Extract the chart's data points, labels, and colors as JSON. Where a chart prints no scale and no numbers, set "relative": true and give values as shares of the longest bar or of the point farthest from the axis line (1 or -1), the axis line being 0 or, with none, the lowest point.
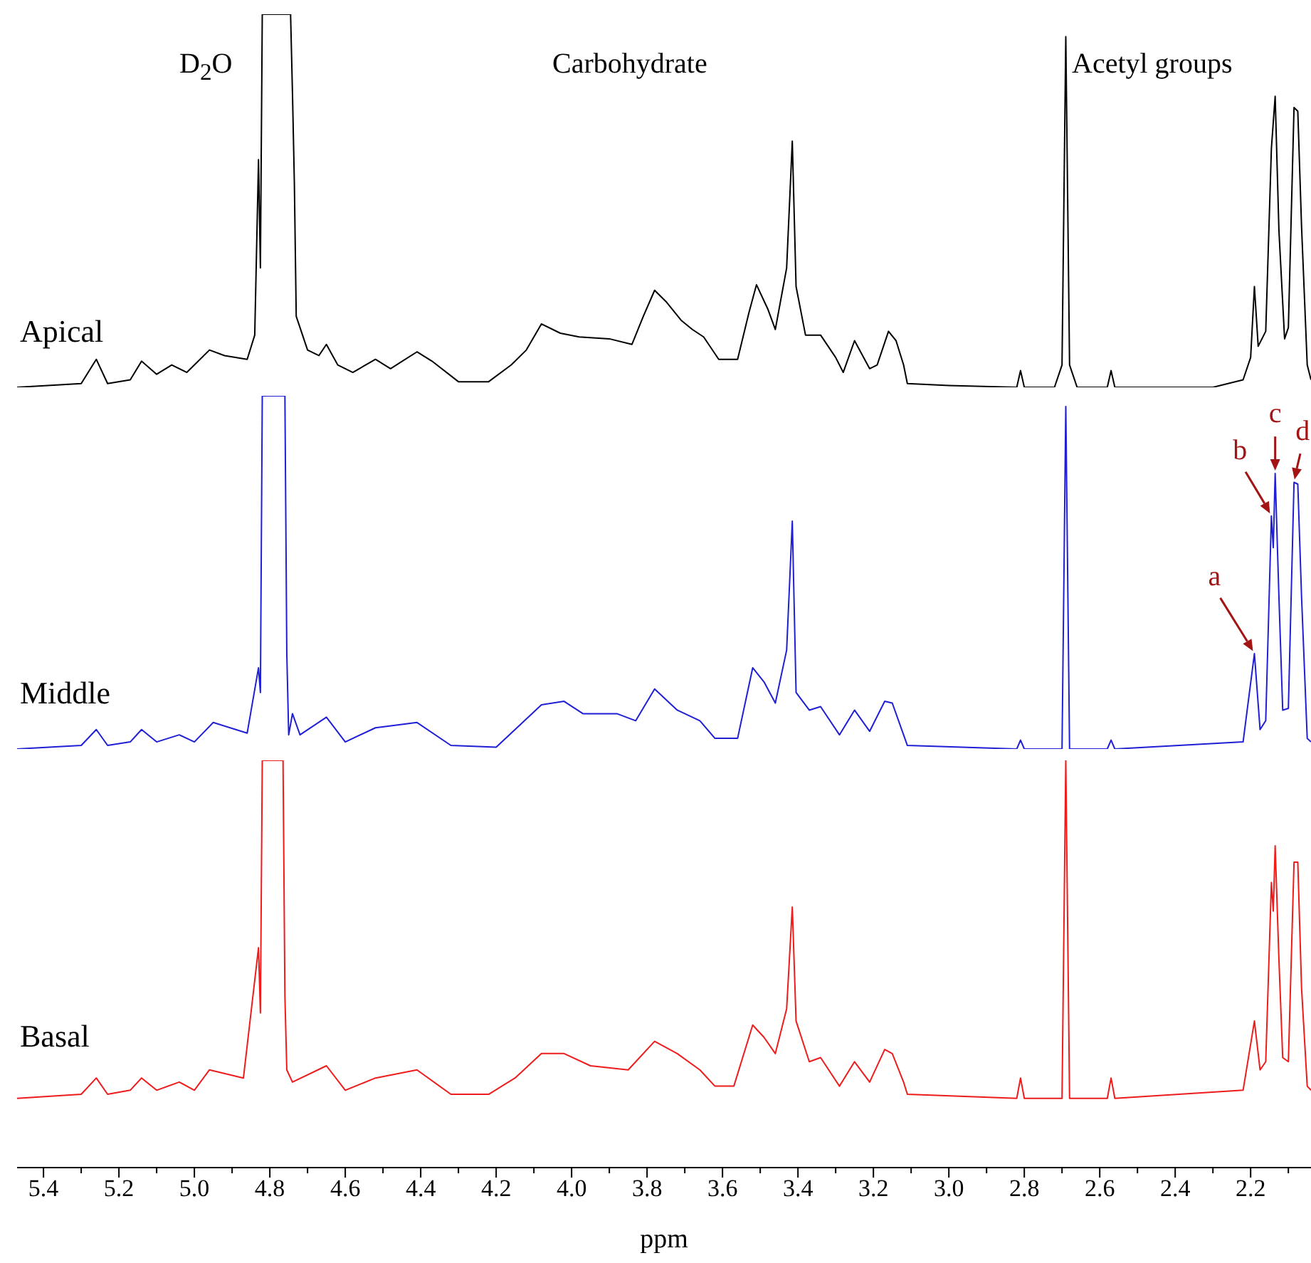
{
  "chart_data": [
    {
      "type": "line",
      "relative": true,
      "xlim": [
        5.47,
        2.04
      ],
      "tick_labels": false,
      "annotations": [
        "D$_{2}$O",
        "Carbohydrate",
        "Acetyl groups"
      ],
      "series": [
        {
          "name": "Apical",
          "color": "#000000",
          "x": [
            5.47,
            5.3,
            5.26,
            5.23,
            5.17,
            5.14,
            5.1,
            5.06,
            5.02,
            4.96,
            4.92,
            4.86,
            4.84,
            4.83,
            4.825,
            4.82,
            4.745,
            4.74,
            4.735,
            4.73,
            4.7,
            4.67,
            4.65,
            4.62,
            4.58,
            4.52,
            4.48,
            4.41,
            4.37,
            4.3,
            4.22,
            4.16,
            4.12,
            4.08,
            4.03,
            3.98,
            3.9,
            3.84,
            3.81,
            3.78,
            3.75,
            3.71,
            3.68,
            3.65,
            3.61,
            3.56,
            3.53,
            3.51,
            3.48,
            3.46,
            3.43,
            3.415,
            3.405,
            3.38,
            3.34,
            3.3,
            3.28,
            3.25,
            3.21,
            3.19,
            3.16,
            3.14,
            3.12,
            3.11,
            3.0,
            2.82,
            2.81,
            2.8,
            2.72,
            2.7,
            2.69,
            2.68,
            2.66,
            2.58,
            2.57,
            2.56,
            2.3,
            2.22,
            2.2,
            2.19,
            2.18,
            2.16,
            2.145,
            2.135,
            2.125,
            2.11,
            2.1,
            2.085,
            2.075,
            2.065,
            2.05,
            2.04
          ],
          "values": [
            0,
            0.01,
            0.075,
            0.01,
            0.02,
            0.07,
            0.035,
            0.06,
            0.04,
            0.1,
            0.085,
            0.075,
            0.14,
            0.61,
            0.32,
            1,
            1,
            0.79,
            0.55,
            0.19,
            0.1,
            0.085,
            0.115,
            0.06,
            0.04,
            0.075,
            0.05,
            0.095,
            0.07,
            0.015,
            0.015,
            0.06,
            0.1,
            0.17,
            0.145,
            0.135,
            0.13,
            0.115,
            0.19,
            0.26,
            0.23,
            0.18,
            0.155,
            0.135,
            0.075,
            0.075,
            0.2,
            0.275,
            0.21,
            0.155,
            0.32,
            0.66,
            0.27,
            0.14,
            0.14,
            0.08,
            0.04,
            0.125,
            0.05,
            0.06,
            0.15,
            0.125,
            0.06,
            0.01,
            0.005,
            0,
            0.045,
            0,
            0,
            0.06,
            0.94,
            0.06,
            0,
            0,
            0.045,
            0,
            0,
            0.02,
            0.08,
            0.27,
            0.11,
            0.15,
            0.64,
            0.78,
            0.42,
            0.13,
            0.16,
            0.75,
            0.74,
            0.43,
            0.06,
            0.02
          ]
        }
      ]
    },
    {
      "type": "line",
      "relative": true,
      "xlim": [
        5.47,
        2.04
      ],
      "tick_labels": false,
      "annotations": [
        {
          "text": "a",
          "x": 2.19,
          "y": 0.27
        },
        {
          "text": "b",
          "x": 2.145,
          "y": 0.66
        },
        {
          "text": "c",
          "x": 2.135,
          "y": 0.78
        },
        {
          "text": "d",
          "x": 2.085,
          "y": 0.755
        }
      ],
      "series": [
        {
          "name": "Middle",
          "color": "#1f1fd6",
          "x": [
            5.47,
            5.3,
            5.26,
            5.23,
            5.17,
            5.14,
            5.1,
            5.04,
            5.0,
            4.95,
            4.86,
            4.83,
            4.825,
            4.82,
            4.76,
            4.755,
            4.75,
            4.74,
            4.72,
            4.65,
            4.6,
            4.52,
            4.41,
            4.32,
            4.2,
            4.15,
            4.08,
            4.02,
            3.97,
            3.88,
            3.83,
            3.78,
            3.72,
            3.66,
            3.62,
            3.56,
            3.52,
            3.49,
            3.46,
            3.43,
            3.415,
            3.405,
            3.37,
            3.34,
            3.29,
            3.25,
            3.21,
            3.17,
            3.15,
            3.12,
            3.11,
            2.82,
            2.81,
            2.8,
            2.7,
            2.69,
            2.68,
            2.58,
            2.57,
            2.56,
            2.22,
            2.19,
            2.175,
            2.16,
            2.145,
            2.14,
            2.135,
            2.125,
            2.115,
            2.1,
            2.085,
            2.075,
            2.065,
            2.05,
            2.04
          ],
          "values": [
            0,
            0.01,
            0.055,
            0.01,
            0.02,
            0.055,
            0.02,
            0.04,
            0.02,
            0.075,
            0.045,
            0.23,
            0.16,
            1,
            1,
            0.27,
            0.04,
            0.1,
            0.04,
            0.09,
            0.02,
            0.06,
            0.075,
            0.01,
            0.005,
            0.055,
            0.125,
            0.135,
            0.1,
            0.1,
            0.08,
            0.17,
            0.11,
            0.08,
            0.03,
            0.03,
            0.23,
            0.19,
            0.13,
            0.28,
            0.645,
            0.16,
            0.11,
            0.12,
            0.04,
            0.11,
            0.05,
            0.135,
            0.13,
            0.04,
            0.01,
            0,
            0.025,
            0,
            0,
            0.97,
            0,
            0,
            0.025,
            0,
            0.02,
            0.27,
            0.055,
            0.08,
            0.66,
            0.57,
            0.78,
            0.43,
            0.11,
            0.115,
            0.755,
            0.75,
            0.43,
            0.03,
            0.02
          ]
        }
      ]
    },
    {
      "type": "line",
      "relative": true,
      "xlim": [
        5.47,
        2.04
      ],
      "tick_labels": "x",
      "xlabel": "ppm",
      "xticks": [
        5.4,
        {
          "value": 5.3,
          "label": null
        },
        5.2,
        {
          "value": 5.1,
          "label": null
        },
        {
          "value": 5.0,
          "label": "5.0"
        },
        {
          "value": 4.9,
          "label": null
        },
        4.8,
        {
          "value": 4.7,
          "label": null
        },
        4.6,
        {
          "value": 4.5,
          "label": null
        },
        4.4,
        {
          "value": 4.3,
          "label": null
        },
        4.2,
        {
          "value": 4.1,
          "label": null
        },
        {
          "value": 4.0,
          "label": "4.0"
        },
        {
          "value": 3.9,
          "label": null
        },
        3.8,
        {
          "value": 3.7,
          "label": null
        },
        3.6,
        {
          "value": 3.5,
          "label": null
        },
        3.4,
        {
          "value": 3.3,
          "label": null
        },
        3.2,
        {
          "value": 3.1,
          "label": null
        },
        {
          "value": 3.0,
          "label": "3.0"
        },
        {
          "value": 2.9,
          "label": null
        },
        2.8,
        {
          "value": 2.7,
          "label": null
        },
        2.6,
        {
          "value": 2.5,
          "label": null
        },
        2.4,
        {
          "value": 2.3,
          "label": null
        },
        2.2,
        {
          "value": 2.1,
          "label": null
        }
      ],
      "series": [
        {
          "name": "Basal",
          "color": "#ee1c1c",
          "x": [
            5.47,
            5.3,
            5.26,
            5.23,
            5.17,
            5.14,
            5.1,
            5.04,
            5.0,
            4.96,
            4.87,
            4.83,
            4.825,
            4.82,
            4.765,
            4.76,
            4.755,
            4.74,
            4.65,
            4.6,
            4.52,
            4.41,
            4.32,
            4.22,
            4.15,
            4.08,
            4.02,
            3.95,
            3.85,
            3.78,
            3.72,
            3.66,
            3.62,
            3.57,
            3.52,
            3.49,
            3.46,
            3.43,
            3.415,
            3.405,
            3.37,
            3.34,
            3.29,
            3.25,
            3.21,
            3.17,
            3.15,
            3.12,
            3.11,
            2.82,
            2.81,
            2.8,
            2.7,
            2.69,
            2.68,
            2.58,
            2.57,
            2.56,
            2.22,
            2.19,
            2.175,
            2.16,
            2.145,
            2.14,
            2.135,
            2.125,
            2.115,
            2.1,
            2.085,
            2.075,
            2.065,
            2.05,
            2.04
          ],
          "values": [
            0.17,
            0.18,
            0.22,
            0.18,
            0.19,
            0.22,
            0.19,
            0.21,
            0.19,
            0.24,
            0.22,
            0.54,
            0.38,
            1,
            1,
            0.42,
            0.24,
            0.21,
            0.25,
            0.19,
            0.22,
            0.24,
            0.18,
            0.18,
            0.22,
            0.28,
            0.28,
            0.25,
            0.24,
            0.31,
            0.28,
            0.24,
            0.2,
            0.2,
            0.35,
            0.32,
            0.28,
            0.39,
            0.64,
            0.36,
            0.26,
            0.27,
            0.2,
            0.26,
            0.21,
            0.29,
            0.28,
            0.21,
            0.18,
            0.17,
            0.22,
            0.17,
            0.17,
            1,
            0.17,
            0.17,
            0.22,
            0.17,
            0.19,
            0.36,
            0.24,
            0.26,
            0.7,
            0.63,
            0.79,
            0.51,
            0.27,
            0.26,
            0.75,
            0.75,
            0.44,
            0.2,
            0.19
          ]
        }
      ]
    }
  ]
}
